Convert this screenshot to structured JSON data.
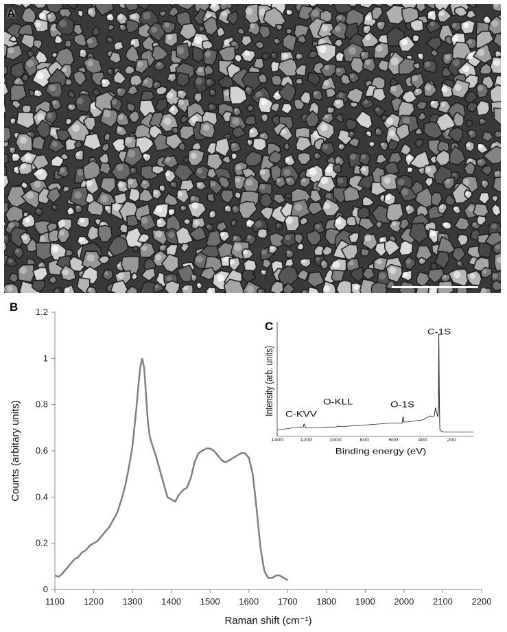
{
  "panels": {
    "a_label": "A",
    "b_label": "B",
    "c_label": "C"
  },
  "sem_image": {
    "description_icon": "sem-micrograph-diamond-grains",
    "scale_bar_color": "#ffffff"
  },
  "chart_data": [
    {
      "type": "line",
      "id": "raman",
      "xlabel": "Raman shift (cm⁻¹)",
      "ylabel": "Counts (arbitary units)",
      "xlim": [
        1100,
        2200
      ],
      "ylim": [
        0,
        1.2
      ],
      "x_ticks": [
        1100,
        1200,
        1300,
        1400,
        1500,
        1600,
        1700,
        1800,
        1900,
        2000,
        2100,
        2200
      ],
      "y_ticks": [
        "0",
        "0.2",
        "0.4",
        "0.6",
        "0.8",
        "1",
        "1.2"
      ],
      "line_color": "#7f7f7f",
      "grid": false,
      "series": [
        {
          "x": [
            1100,
            1110,
            1120,
            1130,
            1140,
            1150,
            1160,
            1170,
            1180,
            1190,
            1200,
            1210,
            1220,
            1230,
            1240,
            1250,
            1260,
            1270,
            1280,
            1290,
            1300,
            1310,
            1315,
            1320,
            1325,
            1330,
            1335,
            1340,
            1345,
            1350,
            1360,
            1370,
            1380,
            1390,
            1400,
            1410,
            1420,
            1430,
            1440,
            1450,
            1460,
            1470,
            1480,
            1490,
            1500,
            1510,
            1520,
            1530,
            1540,
            1550,
            1560,
            1570,
            1580,
            1590,
            1600,
            1610,
            1620,
            1630,
            1640,
            1650,
            1660,
            1670,
            1680,
            1690,
            1700
          ],
          "y": [
            0.06,
            0.055,
            0.07,
            0.09,
            0.11,
            0.13,
            0.14,
            0.16,
            0.17,
            0.19,
            0.2,
            0.21,
            0.23,
            0.25,
            0.27,
            0.3,
            0.33,
            0.38,
            0.44,
            0.52,
            0.62,
            0.78,
            0.88,
            0.96,
            1.0,
            0.96,
            0.84,
            0.72,
            0.66,
            0.63,
            0.58,
            0.52,
            0.46,
            0.4,
            0.39,
            0.38,
            0.41,
            0.43,
            0.44,
            0.48,
            0.55,
            0.59,
            0.6,
            0.61,
            0.61,
            0.6,
            0.58,
            0.56,
            0.55,
            0.56,
            0.57,
            0.58,
            0.59,
            0.59,
            0.57,
            0.5,
            0.35,
            0.18,
            0.08,
            0.05,
            0.05,
            0.06,
            0.06,
            0.05,
            0.04
          ]
        }
      ]
    },
    {
      "type": "line",
      "id": "xps",
      "xlabel": "Binding energy (eV)",
      "ylabel": "Intensity  (arb. units)",
      "xlim": [
        1400,
        50
      ],
      "x_ticks": [
        "1400",
        "1200",
        "1000",
        "800",
        "600",
        "400",
        "200"
      ],
      "line_color": "#222222",
      "annotations": [
        "C-KVV",
        "O-KLL",
        "O-1S",
        "C-1S"
      ],
      "series": [
        {
          "x": [
            1400,
            1350,
            1300,
            1250,
            1220,
            1215,
            1210,
            1205,
            1195,
            1150,
            1100,
            1050,
            1000,
            985,
            980,
            975,
            960,
            900,
            800,
            700,
            600,
            540,
            535,
            532,
            528,
            520,
            500,
            450,
            400,
            360,
            345,
            340,
            320,
            310,
            300,
            295,
            290,
            288,
            285,
            282,
            280,
            270,
            250,
            200,
            150,
            100,
            50
          ],
          "y": [
            0.03,
            0.04,
            0.05,
            0.06,
            0.06,
            0.09,
            0.08,
            0.05,
            0.05,
            0.055,
            0.055,
            0.06,
            0.06,
            0.065,
            0.07,
            0.065,
            0.065,
            0.07,
            0.08,
            0.09,
            0.1,
            0.1,
            0.16,
            0.15,
            0.11,
            0.11,
            0.11,
            0.12,
            0.13,
            0.16,
            0.17,
            0.16,
            0.17,
            0.25,
            0.19,
            0.16,
            0.25,
            0.97,
            0.45,
            0.1,
            0.03,
            0.02,
            0.01,
            0.01,
            0.01,
            0.01,
            0.01
          ]
        }
      ]
    }
  ]
}
